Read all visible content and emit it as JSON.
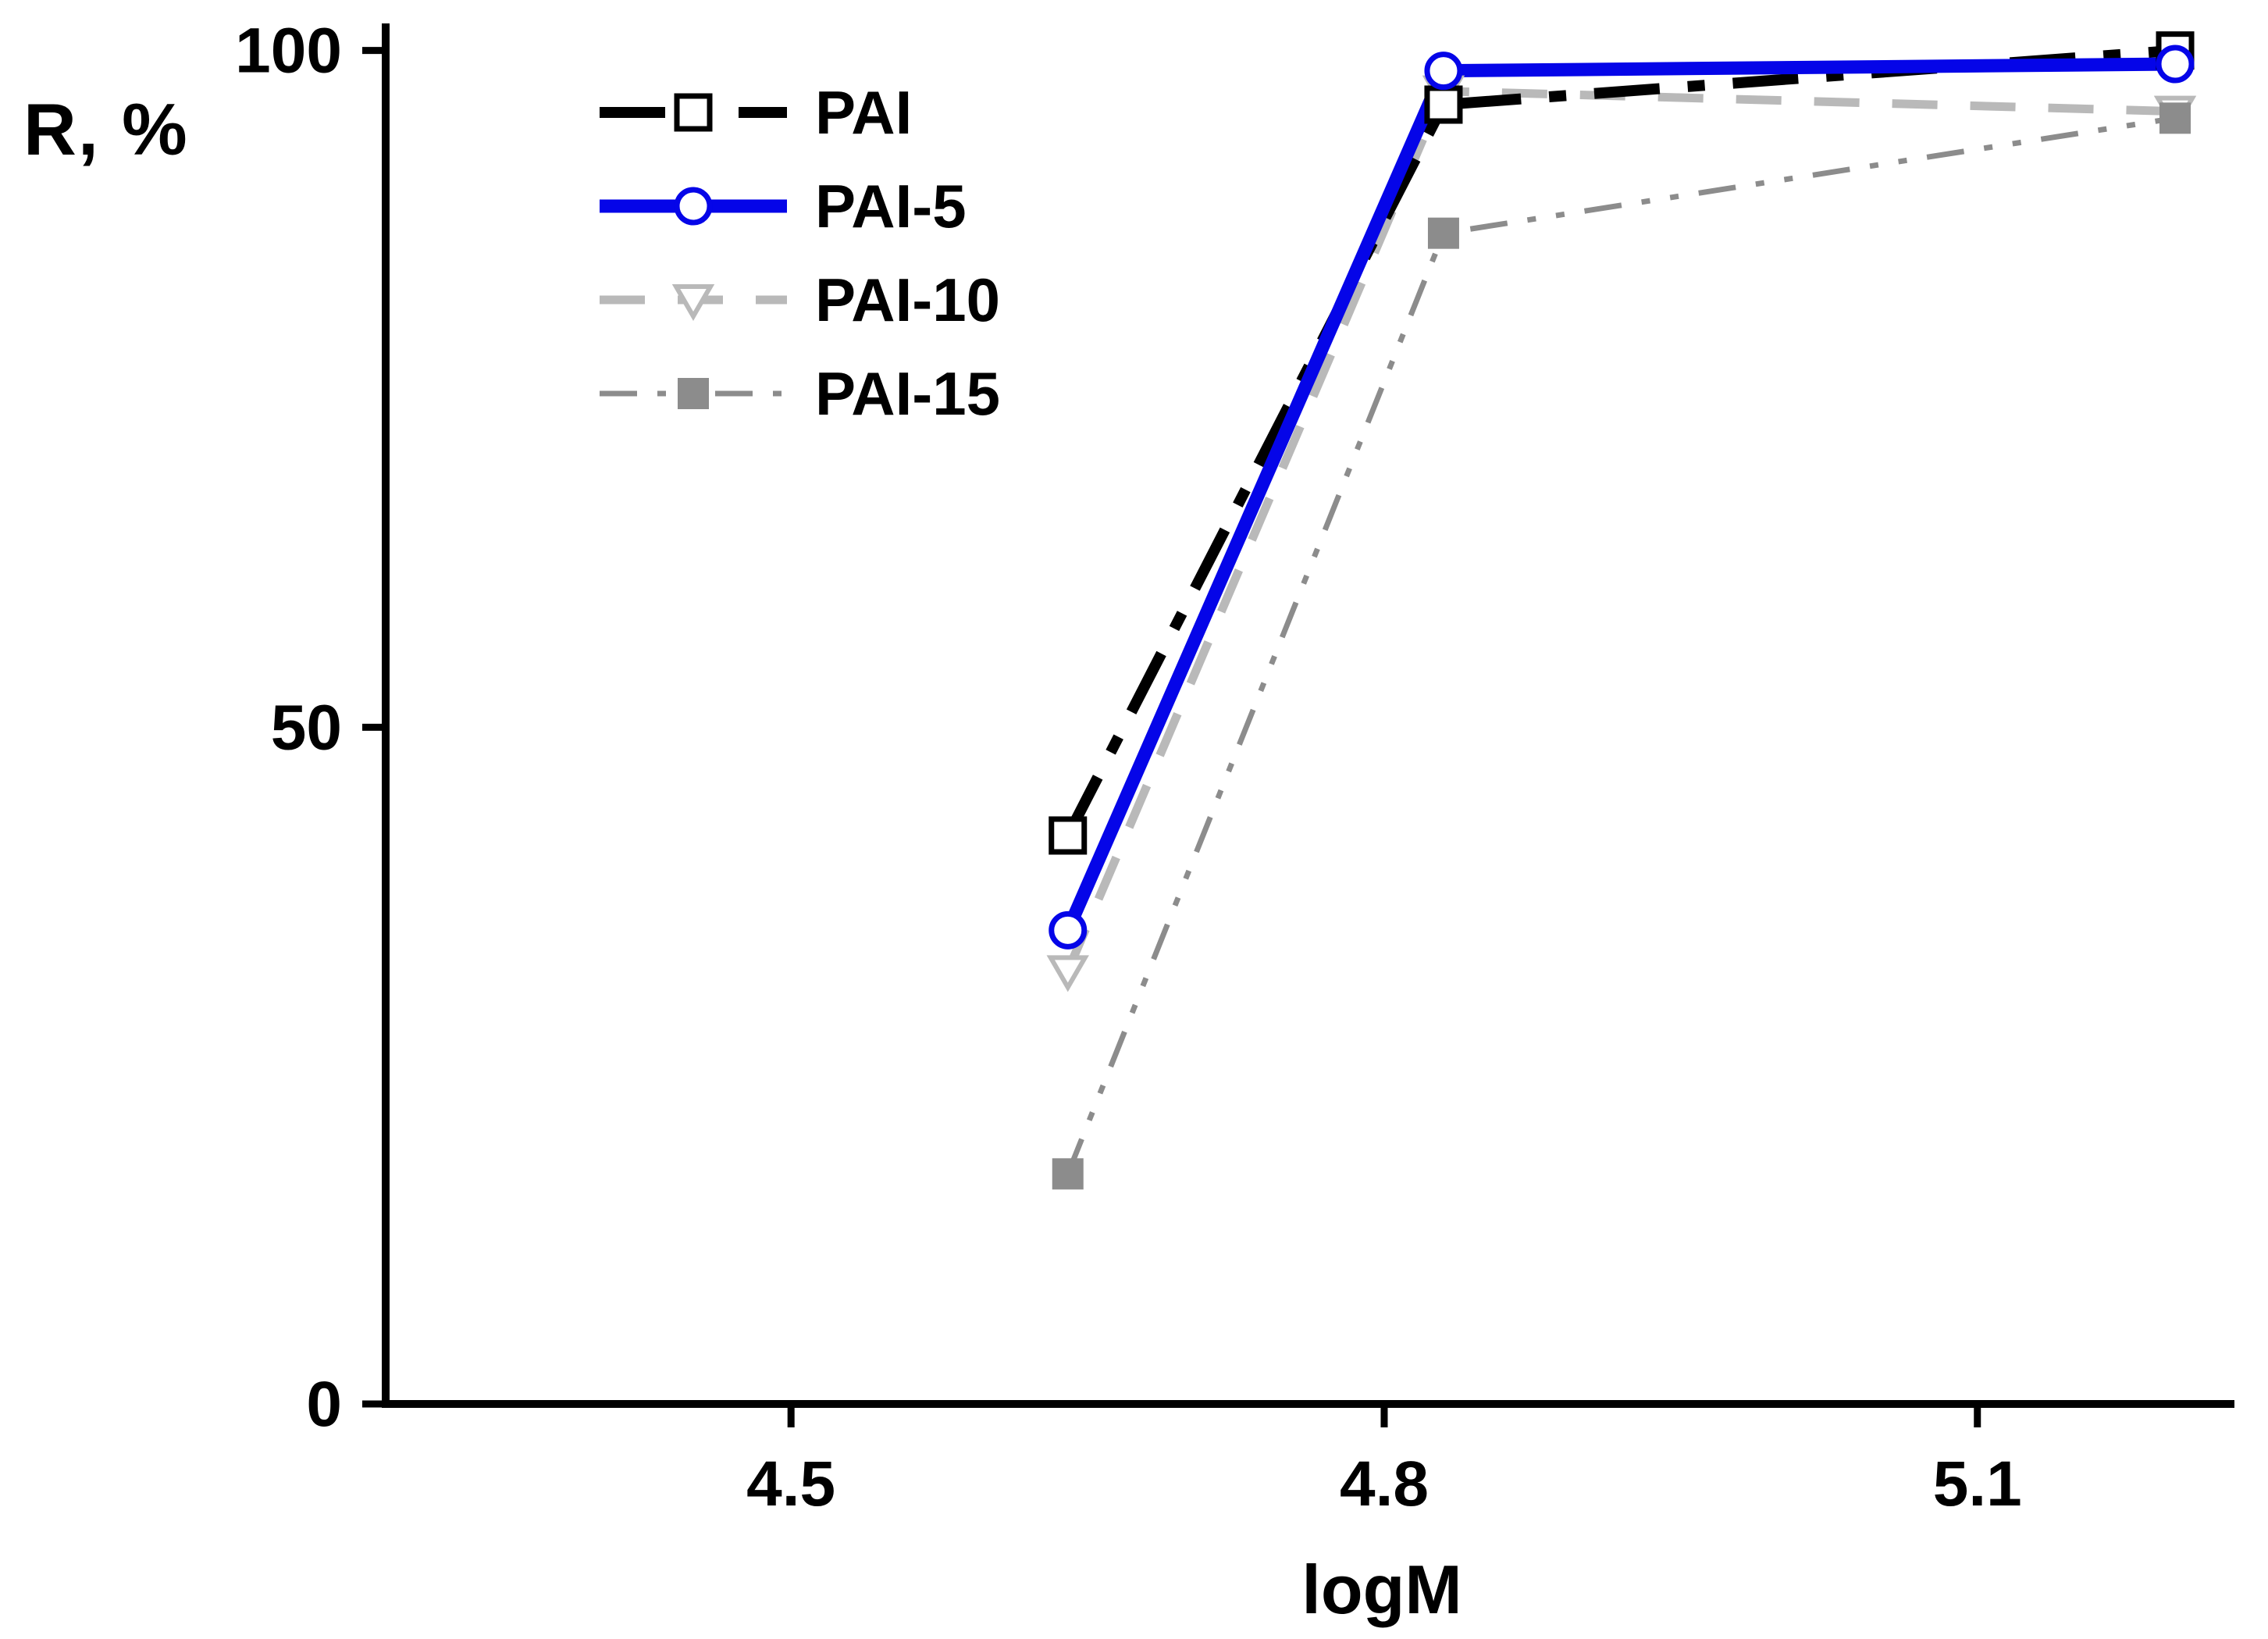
{
  "chart_data": {
    "type": "line",
    "title": "",
    "xlabel": "logM",
    "ylabel": "R, %",
    "x": [
      4.64,
      4.83,
      5.2
    ],
    "series": [
      {
        "name": "PAI",
        "values": [
          42,
          96,
          100
        ],
        "color": "#000000",
        "marker": "square-open",
        "line_style": "dash-dot",
        "line_width": 14
      },
      {
        "name": "PAI-5",
        "values": [
          35,
          98.5,
          99
        ],
        "color": "#0505e8",
        "marker": "circle-open",
        "line_style": "solid",
        "line_width": 17
      },
      {
        "name": "PAI-10",
        "values": [
          32,
          97,
          95.5
        ],
        "color": "#b9b9b9",
        "marker": "triangle-down-open",
        "line_style": "dashed",
        "line_width": 11
      },
      {
        "name": "PAI-15",
        "values": [
          17,
          86.5,
          95
        ],
        "color": "#8c8c8c",
        "marker": "square-filled",
        "line_style": "dash-dot-dot",
        "line_width": 7
      }
    ],
    "x_ticks": [
      4.5,
      4.8,
      5.1
    ],
    "x_tick_labels": [
      "4.5",
      "4.8",
      "5.1"
    ],
    "y_ticks": [
      0,
      50,
      100
    ],
    "y_tick_labels": [
      "0",
      "50",
      "100"
    ],
    "xlim": [
      4.295,
      5.23
    ],
    "ylim": [
      0,
      102
    ],
    "grid": false,
    "legend_position": "top-left",
    "axis_color": "#000000",
    "background_color": "#ffffff"
  }
}
